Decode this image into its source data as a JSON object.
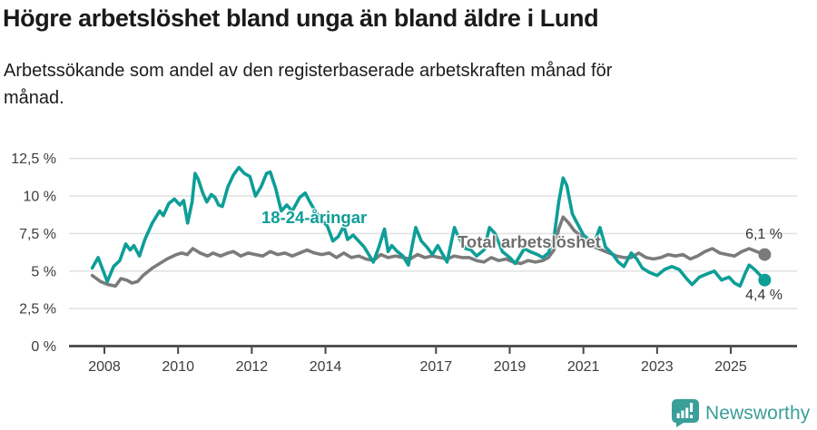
{
  "chart_data": {
    "type": "line",
    "title": "Högre arbetslöshet bland unga än bland äldre i Lund",
    "subtitle": "Arbetssökande som andel av den registerbaserade arbetskraften månad för månad.",
    "xlabel": "",
    "ylabel": "",
    "unit": "%",
    "xlim": [
      2007.04,
      2026.8
    ],
    "ylim": [
      0,
      12.5
    ],
    "grid": "horizontal",
    "legend_position": "inline-labels",
    "x_ticks": [
      2008,
      2010,
      2012,
      2014,
      2017,
      2019,
      2021,
      2023,
      2025
    ],
    "x_tick_labels": [
      "2008",
      "2010",
      "2012",
      "2014",
      "2017",
      "2019",
      "2021",
      "2023",
      "2025"
    ],
    "y_ticks": [
      0,
      2.5,
      5,
      7.5,
      10,
      12.5
    ],
    "y_tick_labels": [
      "0 %",
      "2,5 %",
      "5 %",
      "7,5 %",
      "10 %",
      "12,5 %"
    ],
    "colors": {
      "young": "#0d9e97",
      "total": "#7b7b7b",
      "grid": "#e3e3e3",
      "axis": "#454545",
      "tick_text": "#3d3d3d",
      "end_label_text": "#333333",
      "brand_teal": "#3a9e99"
    },
    "series": [
      {
        "id": "young",
        "name": "18-24-åringar",
        "label": "18-24-åringar",
        "color": "#0d9e97",
        "end_label": "4,4 %",
        "last_value": 4.4,
        "points": [
          [
            2007.67,
            5.2
          ],
          [
            2007.83,
            5.9
          ],
          [
            2008.08,
            4.3
          ],
          [
            2008.25,
            5.3
          ],
          [
            2008.42,
            5.7
          ],
          [
            2008.58,
            6.8
          ],
          [
            2008.7,
            6.4
          ],
          [
            2008.8,
            6.7
          ],
          [
            2008.95,
            6.0
          ],
          [
            2009.1,
            7.1
          ],
          [
            2009.3,
            8.2
          ],
          [
            2009.5,
            9.0
          ],
          [
            2009.6,
            8.7
          ],
          [
            2009.75,
            9.5
          ],
          [
            2009.9,
            9.8
          ],
          [
            2010.05,
            9.4
          ],
          [
            2010.15,
            9.7
          ],
          [
            2010.26,
            8.2
          ],
          [
            2010.38,
            9.6
          ],
          [
            2010.46,
            11.5
          ],
          [
            2010.55,
            11.1
          ],
          [
            2010.67,
            10.2
          ],
          [
            2010.78,
            9.6
          ],
          [
            2010.9,
            10.1
          ],
          [
            2011.0,
            9.9
          ],
          [
            2011.1,
            9.4
          ],
          [
            2011.2,
            9.3
          ],
          [
            2011.35,
            10.6
          ],
          [
            2011.5,
            11.4
          ],
          [
            2011.65,
            11.9
          ],
          [
            2011.8,
            11.5
          ],
          [
            2011.95,
            11.3
          ],
          [
            2012.1,
            10.0
          ],
          [
            2012.25,
            10.6
          ],
          [
            2012.4,
            11.5
          ],
          [
            2012.5,
            11.6
          ],
          [
            2012.65,
            10.5
          ],
          [
            2012.8,
            9.0
          ],
          [
            2012.95,
            9.4
          ],
          [
            2013.1,
            9.0
          ],
          [
            2013.3,
            9.9
          ],
          [
            2013.45,
            10.2
          ],
          [
            2013.6,
            9.5
          ],
          [
            2013.75,
            8.9
          ],
          [
            2013.9,
            8.4
          ],
          [
            2014.05,
            8.0
          ],
          [
            2014.2,
            7.0
          ],
          [
            2014.35,
            7.3
          ],
          [
            2014.5,
            8.0
          ],
          [
            2014.6,
            7.1
          ],
          [
            2014.75,
            7.4
          ],
          [
            2014.9,
            7.0
          ],
          [
            2015.05,
            6.6
          ],
          [
            2015.3,
            5.6
          ],
          [
            2015.45,
            6.6
          ],
          [
            2015.6,
            7.8
          ],
          [
            2015.7,
            6.3
          ],
          [
            2015.8,
            6.7
          ],
          [
            2015.95,
            6.3
          ],
          [
            2016.1,
            6.0
          ],
          [
            2016.25,
            5.4
          ],
          [
            2016.45,
            7.9
          ],
          [
            2016.6,
            7.0
          ],
          [
            2016.75,
            6.6
          ],
          [
            2016.9,
            6.1
          ],
          [
            2017.05,
            6.7
          ],
          [
            2017.3,
            5.6
          ],
          [
            2017.5,
            7.9
          ],
          [
            2017.6,
            7.3
          ],
          [
            2017.8,
            6.5
          ],
          [
            2017.95,
            6.4
          ],
          [
            2018.1,
            6.0
          ],
          [
            2018.3,
            6.4
          ],
          [
            2018.45,
            7.9
          ],
          [
            2018.6,
            7.5
          ],
          [
            2018.8,
            6.3
          ],
          [
            2019.0,
            5.9
          ],
          [
            2019.15,
            5.5
          ],
          [
            2019.4,
            6.5
          ],
          [
            2019.55,
            6.3
          ],
          [
            2019.75,
            6.1
          ],
          [
            2019.9,
            5.9
          ],
          [
            2020.05,
            6.2
          ],
          [
            2020.2,
            7.2
          ],
          [
            2020.33,
            9.6
          ],
          [
            2020.45,
            11.2
          ],
          [
            2020.55,
            10.7
          ],
          [
            2020.7,
            8.8
          ],
          [
            2020.85,
            8.1
          ],
          [
            2021.0,
            7.4
          ],
          [
            2021.15,
            7.1
          ],
          [
            2021.3,
            6.9
          ],
          [
            2021.45,
            7.9
          ],
          [
            2021.6,
            6.6
          ],
          [
            2021.8,
            6.1
          ],
          [
            2021.95,
            5.6
          ],
          [
            2022.1,
            5.3
          ],
          [
            2022.3,
            6.2
          ],
          [
            2022.45,
            5.8
          ],
          [
            2022.6,
            5.2
          ],
          [
            2022.8,
            4.9
          ],
          [
            2023.0,
            4.7
          ],
          [
            2023.2,
            5.1
          ],
          [
            2023.4,
            5.3
          ],
          [
            2023.6,
            5.1
          ],
          [
            2023.8,
            4.5
          ],
          [
            2023.95,
            4.1
          ],
          [
            2024.15,
            4.6
          ],
          [
            2024.35,
            4.8
          ],
          [
            2024.55,
            5.0
          ],
          [
            2024.75,
            4.4
          ],
          [
            2024.95,
            4.6
          ],
          [
            2025.1,
            4.2
          ],
          [
            2025.25,
            4.0
          ],
          [
            2025.4,
            4.9
          ],
          [
            2025.5,
            5.4
          ],
          [
            2025.65,
            5.1
          ],
          [
            2025.92,
            4.4
          ]
        ]
      },
      {
        "id": "total",
        "name": "Total arbetslöshet",
        "label": "Total arbetslöshet",
        "color": "#7b7b7b",
        "end_label": "6,1 %",
        "last_value": 6.1,
        "points": [
          [
            2007.67,
            4.7
          ],
          [
            2007.9,
            4.3
          ],
          [
            2008.1,
            4.1
          ],
          [
            2008.3,
            4.0
          ],
          [
            2008.45,
            4.5
          ],
          [
            2008.6,
            4.4
          ],
          [
            2008.75,
            4.2
          ],
          [
            2008.9,
            4.3
          ],
          [
            2009.05,
            4.7
          ],
          [
            2009.3,
            5.2
          ],
          [
            2009.5,
            5.5
          ],
          [
            2009.7,
            5.8
          ],
          [
            2009.95,
            6.1
          ],
          [
            2010.1,
            6.2
          ],
          [
            2010.25,
            6.1
          ],
          [
            2010.4,
            6.5
          ],
          [
            2010.6,
            6.2
          ],
          [
            2010.8,
            6.0
          ],
          [
            2010.95,
            6.2
          ],
          [
            2011.15,
            6.0
          ],
          [
            2011.35,
            6.2
          ],
          [
            2011.5,
            6.3
          ],
          [
            2011.7,
            6.0
          ],
          [
            2011.9,
            6.2
          ],
          [
            2012.1,
            6.1
          ],
          [
            2012.3,
            6.0
          ],
          [
            2012.5,
            6.3
          ],
          [
            2012.7,
            6.1
          ],
          [
            2012.9,
            6.2
          ],
          [
            2013.1,
            6.0
          ],
          [
            2013.3,
            6.2
          ],
          [
            2013.5,
            6.4
          ],
          [
            2013.7,
            6.2
          ],
          [
            2013.9,
            6.1
          ],
          [
            2014.1,
            6.2
          ],
          [
            2014.3,
            5.9
          ],
          [
            2014.5,
            6.2
          ],
          [
            2014.7,
            5.9
          ],
          [
            2014.9,
            6.0
          ],
          [
            2015.1,
            5.8
          ],
          [
            2015.3,
            5.7
          ],
          [
            2015.5,
            6.1
          ],
          [
            2015.7,
            5.9
          ],
          [
            2015.9,
            6.0
          ],
          [
            2016.1,
            5.9
          ],
          [
            2016.3,
            5.8
          ],
          [
            2016.5,
            6.1
          ],
          [
            2016.7,
            5.9
          ],
          [
            2016.9,
            6.0
          ],
          [
            2017.1,
            5.9
          ],
          [
            2017.3,
            5.8
          ],
          [
            2017.5,
            6.0
          ],
          [
            2017.7,
            5.9
          ],
          [
            2017.9,
            5.9
          ],
          [
            2018.1,
            5.7
          ],
          [
            2018.3,
            5.6
          ],
          [
            2018.5,
            5.9
          ],
          [
            2018.7,
            5.7
          ],
          [
            2018.9,
            5.8
          ],
          [
            2019.1,
            5.6
          ],
          [
            2019.3,
            5.5
          ],
          [
            2019.5,
            5.7
          ],
          [
            2019.7,
            5.6
          ],
          [
            2019.9,
            5.7
          ],
          [
            2020.05,
            5.9
          ],
          [
            2020.2,
            6.4
          ],
          [
            2020.33,
            7.8
          ],
          [
            2020.45,
            8.6
          ],
          [
            2020.6,
            8.2
          ],
          [
            2020.75,
            7.7
          ],
          [
            2020.9,
            7.4
          ],
          [
            2021.1,
            7.0
          ],
          [
            2021.3,
            6.6
          ],
          [
            2021.5,
            6.4
          ],
          [
            2021.7,
            6.2
          ],
          [
            2021.9,
            6.0
          ],
          [
            2022.1,
            5.9
          ],
          [
            2022.3,
            5.9
          ],
          [
            2022.5,
            6.2
          ],
          [
            2022.7,
            5.9
          ],
          [
            2022.9,
            5.8
          ],
          [
            2023.1,
            5.9
          ],
          [
            2023.3,
            6.1
          ],
          [
            2023.5,
            6.0
          ],
          [
            2023.7,
            6.1
          ],
          [
            2023.9,
            5.8
          ],
          [
            2024.1,
            6.0
          ],
          [
            2024.3,
            6.3
          ],
          [
            2024.5,
            6.5
          ],
          [
            2024.7,
            6.2
          ],
          [
            2024.9,
            6.1
          ],
          [
            2025.1,
            6.0
          ],
          [
            2025.3,
            6.3
          ],
          [
            2025.5,
            6.5
          ],
          [
            2025.7,
            6.3
          ],
          [
            2025.92,
            6.1
          ]
        ]
      }
    ]
  },
  "footer": {
    "brand": "Newsworthy"
  }
}
